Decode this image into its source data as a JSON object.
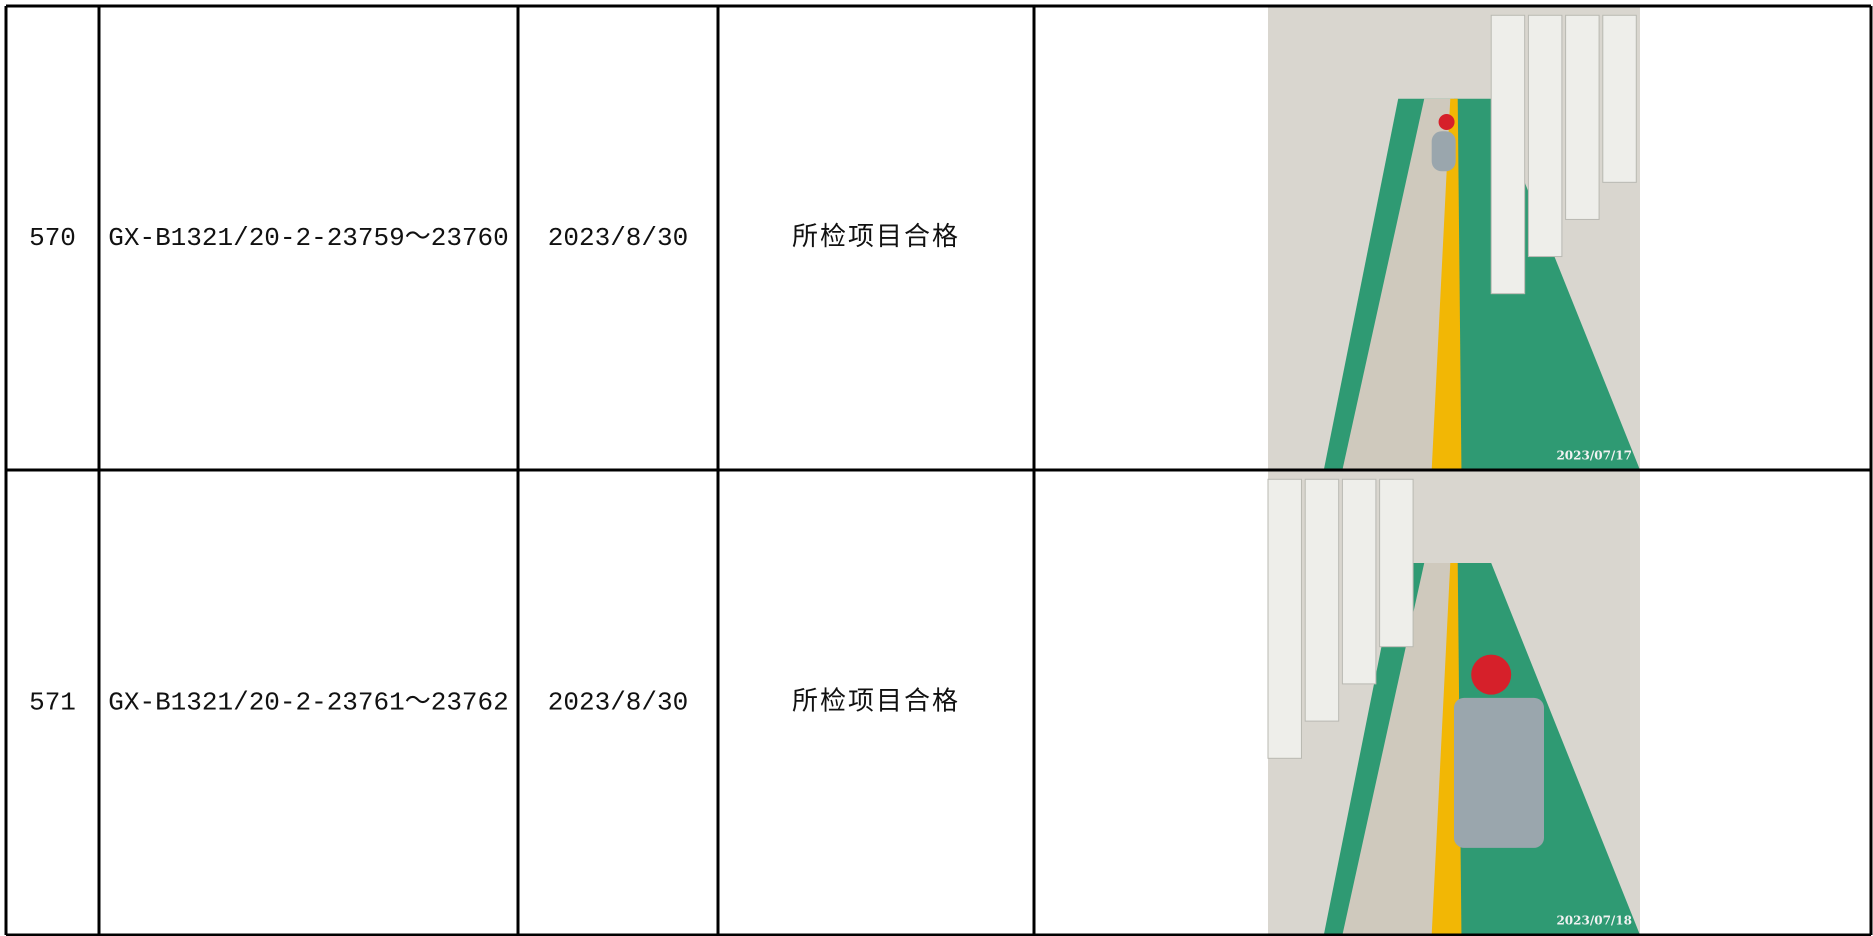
{
  "table": {
    "rows": [
      {
        "id": "570",
        "model": "GX-B1321/20-2-23759～23760",
        "date": "2023/8/30",
        "result": "所检项目合格",
        "photo_stamp": "2023/07/17"
      },
      {
        "id": "571",
        "model": "GX-B1321/20-2-23761～23762",
        "date": "2023/8/30",
        "result": "所检项目合格",
        "photo_stamp": "2023/07/18"
      }
    ]
  }
}
